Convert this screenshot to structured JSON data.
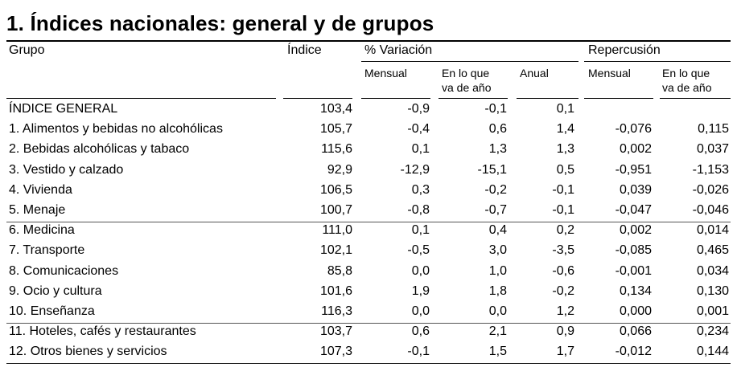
{
  "title": "1. Índices nacionales: general y de grupos",
  "headers": {
    "grupo": "Grupo",
    "indice": "Índice",
    "variacion": "% Variación",
    "repercusion": "Repercusión",
    "mensual": "Mensual",
    "en_lo_que_l1": "En lo que",
    "en_lo_que_l2": "va de año",
    "anual": "Anual"
  },
  "rows": [
    {
      "grupo": "ÍNDICE GENERAL",
      "indice": "103,4",
      "v_mensual": "-0,9",
      "v_ano": "-0,1",
      "v_anual": "0,1",
      "r_mensual": "",
      "r_ano": ""
    },
    {
      "grupo": "1. Alimentos y bebidas no alcohólicas",
      "indice": "105,7",
      "v_mensual": "-0,4",
      "v_ano": "0,6",
      "v_anual": "1,4",
      "r_mensual": "-0,076",
      "r_ano": "0,115"
    },
    {
      "grupo": "2. Bebidas alcohólicas y tabaco",
      "indice": "115,6",
      "v_mensual": "0,1",
      "v_ano": "1,3",
      "v_anual": "1,3",
      "r_mensual": "0,002",
      "r_ano": "0,037"
    },
    {
      "grupo": "3. Vestido y calzado",
      "indice": "92,9",
      "v_mensual": "-12,9",
      "v_ano": "-15,1",
      "v_anual": "0,5",
      "r_mensual": "-0,951",
      "r_ano": "-1,153"
    },
    {
      "grupo": "4. Vivienda",
      "indice": "106,5",
      "v_mensual": "0,3",
      "v_ano": "-0,2",
      "v_anual": "-0,1",
      "r_mensual": "0,039",
      "r_ano": "-0,026"
    },
    {
      "grupo": "5. Menaje",
      "indice": "100,7",
      "v_mensual": "-0,8",
      "v_ano": "-0,7",
      "v_anual": "-0,1",
      "r_mensual": "-0,047",
      "r_ano": "-0,046"
    },
    {
      "grupo": "6. Medicina",
      "indice": "111,0",
      "v_mensual": "0,1",
      "v_ano": "0,4",
      "v_anual": "0,2",
      "r_mensual": "0,002",
      "r_ano": "0,014"
    },
    {
      "grupo": "7. Transporte",
      "indice": "102,1",
      "v_mensual": "-0,5",
      "v_ano": "3,0",
      "v_anual": "-3,5",
      "r_mensual": "-0,085",
      "r_ano": "0,465"
    },
    {
      "grupo": "8. Comunicaciones",
      "indice": "85,8",
      "v_mensual": "0,0",
      "v_ano": "1,0",
      "v_anual": "-0,6",
      "r_mensual": "-0,001",
      "r_ano": "0,034"
    },
    {
      "grupo": "9. Ocio y cultura",
      "indice": "101,6",
      "v_mensual": "1,9",
      "v_ano": "1,8",
      "v_anual": "-0,2",
      "r_mensual": "0,134",
      "r_ano": "0,130"
    },
    {
      "grupo": "10. Enseñanza",
      "indice": "116,3",
      "v_mensual": "0,0",
      "v_ano": "0,0",
      "v_anual": "1,2",
      "r_mensual": "0,000",
      "r_ano": "0,001"
    },
    {
      "grupo": "11. Hoteles, cafés y restaurantes",
      "indice": "103,7",
      "v_mensual": "0,6",
      "v_ano": "2,1",
      "v_anual": "0,9",
      "r_mensual": "0,066",
      "r_ano": "0,234"
    },
    {
      "grupo": "12. Otros bienes y servicios",
      "indice": "107,3",
      "v_mensual": "-0,1",
      "v_ano": "1,5",
      "v_anual": "1,7",
      "r_mensual": "-0,012",
      "r_ano": "0,144"
    }
  ]
}
